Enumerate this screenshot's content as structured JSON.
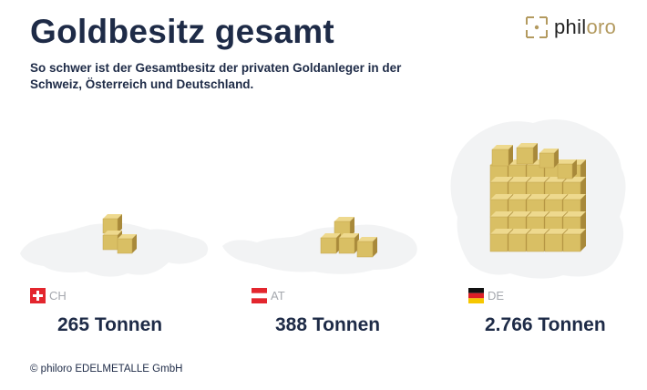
{
  "title": "Goldbesitz gesamt",
  "subtitle": "So schwer ist der Gesamtbesitz der privaten Goldanleger in der Schweiz, Österreich und Deutschland.",
  "logo": {
    "text_main": "phil",
    "text_accent": "oro",
    "accent_color": "#b39a5f",
    "icon": "philoro-bracket-icon"
  },
  "copyright": "© philoro EDELMETALLE GmbH",
  "colors": {
    "gold": "#d9bf64",
    "gold_dark": "#a8893a",
    "gold_top": "#eed98e",
    "map": "#f2f3f4",
    "text": "#1e2b47"
  },
  "chart_data": {
    "type": "pictogram",
    "title": "Goldbesitz gesamt",
    "unit": "Tonnen",
    "categories": [
      "CH",
      "AT",
      "DE"
    ],
    "values": [
      265,
      388,
      2766
    ],
    "labels": [
      "265 Tonnen",
      "388 Tonnen",
      "2.766 Tonnen"
    ],
    "countries": [
      {
        "code": "CH",
        "flag": "swiss-flag-icon",
        "value": 265,
        "label": "265 Tonnen"
      },
      {
        "code": "AT",
        "flag": "austria-flag-icon",
        "value": 388,
        "label": "388 Tonnen"
      },
      {
        "code": "DE",
        "flag": "germany-flag-icon",
        "value": 2766,
        "label": "2.766 Tonnen"
      }
    ]
  }
}
